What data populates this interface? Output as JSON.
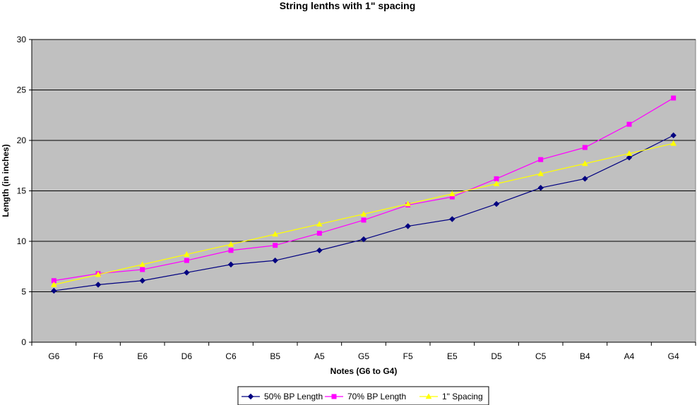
{
  "chart_data": {
    "type": "line",
    "title": "String lenths with 1\" spacing",
    "xlabel": "Notes (G6 to G4)",
    "ylabel": "Length (in inches)",
    "categories": [
      "G6",
      "F6",
      "E6",
      "D6",
      "C6",
      "B5",
      "A5",
      "G5",
      "F5",
      "E5",
      "D5",
      "C5",
      "B4",
      "A4",
      "G4"
    ],
    "ylim": [
      0,
      30
    ],
    "yticks": [
      0,
      5,
      10,
      15,
      20,
      25,
      30
    ],
    "grid": true,
    "plot_background": "#c0c0c0",
    "legend_position": "bottom",
    "series": [
      {
        "name": "50% BP Length",
        "color": "#000080",
        "marker": "diamond",
        "values": [
          5.1,
          5.7,
          6.1,
          6.9,
          7.7,
          8.1,
          9.1,
          10.2,
          11.5,
          12.2,
          13.7,
          15.3,
          16.2,
          18.3,
          20.5
        ]
      },
      {
        "name": "70% BP Length",
        "color": "#ff00ff",
        "marker": "square",
        "values": [
          6.1,
          6.8,
          7.2,
          8.1,
          9.1,
          9.6,
          10.8,
          12.1,
          13.6,
          14.4,
          16.2,
          18.1,
          19.3,
          21.6,
          24.2
        ]
      },
      {
        "name": "1\" Spacing",
        "color": "#ffff00",
        "marker": "triangle",
        "values": [
          5.7,
          6.7,
          7.7,
          8.7,
          9.7,
          10.7,
          11.7,
          12.7,
          13.7,
          14.7,
          15.7,
          16.7,
          17.7,
          18.7,
          19.7
        ]
      }
    ]
  }
}
